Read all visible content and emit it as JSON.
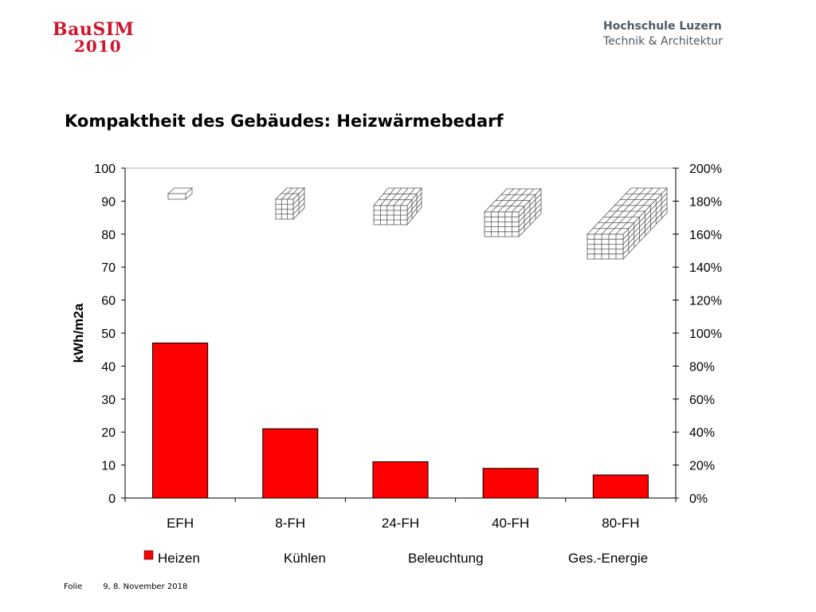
{
  "header": {
    "logo_line1": "BauSIM",
    "logo_line2": "2010",
    "school_line1": "Hochschule Luzern",
    "school_line2": "Technik & Architektur"
  },
  "slide": {
    "title": "Kompaktheit des Gebäudes: Heizwärmebedarf"
  },
  "chart_data": {
    "type": "bar",
    "categories": [
      "EFH",
      "8-FH",
      "24-FH",
      "40-FH",
      "80-FH"
    ],
    "series": [
      {
        "name": "Heizen",
        "values": [
          47,
          21,
          11,
          9,
          7
        ],
        "color": "#ff0000"
      }
    ],
    "ylabel": "kWh/m2a",
    "ylim": [
      0,
      100
    ],
    "y_ticks": [
      "0",
      "10",
      "20",
      "30",
      "40",
      "50",
      "60",
      "70",
      "80",
      "90",
      "100"
    ],
    "y2lim": [
      0,
      200
    ],
    "y2_ticks": [
      "0%",
      "20%",
      "40%",
      "60%",
      "80%",
      "100%",
      "120%",
      "140%",
      "160%",
      "180%",
      "200%"
    ],
    "legend": [
      "Heizen",
      "Kühlen",
      "Beleuchtung",
      "Ges.-Energie"
    ],
    "legend_position": "bottom",
    "grid": false
  },
  "footer": {
    "label": "Folie",
    "page_date": "9, 8. November 2018"
  }
}
